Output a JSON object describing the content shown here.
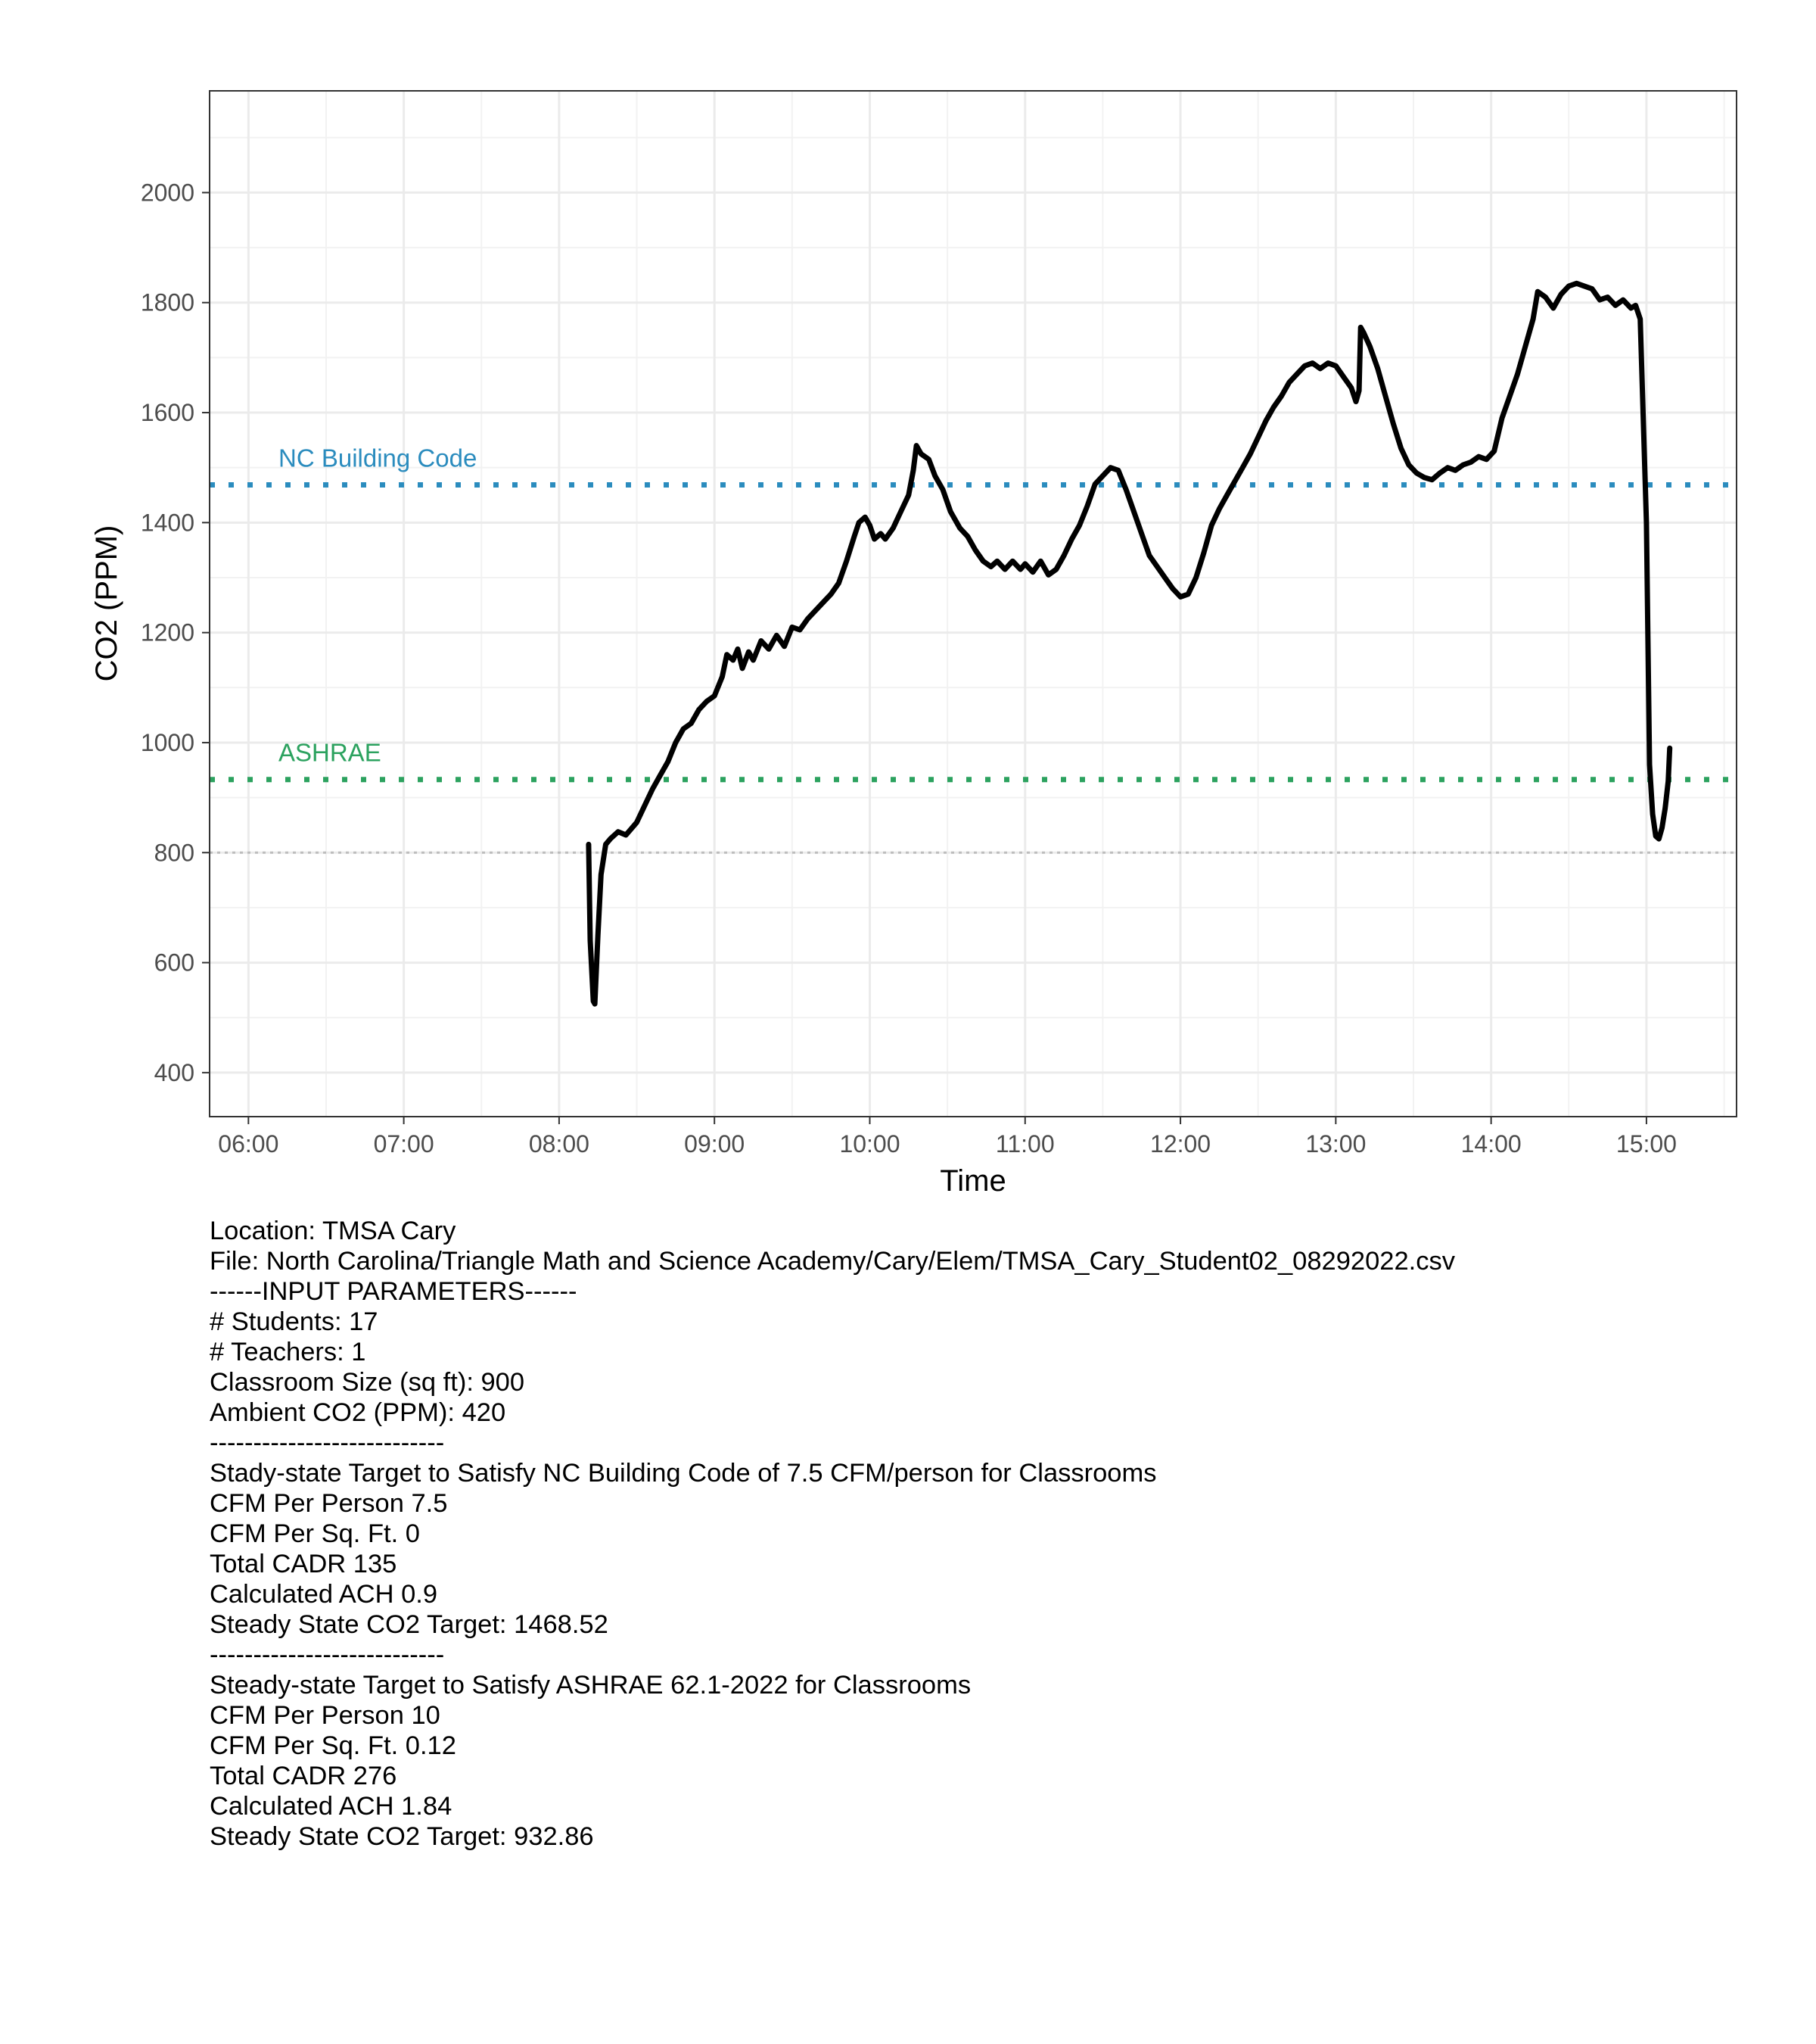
{
  "chart_data": {
    "type": "line",
    "xlabel": "Time",
    "ylabel": "CO2 (PPM)",
    "x_unit": "time of day (hours)",
    "xlim": [
      5.75,
      15.58
    ],
    "ylim": [
      320,
      2185
    ],
    "x_ticks": [
      {
        "value": 6,
        "label": "06:00"
      },
      {
        "value": 7,
        "label": "07:00"
      },
      {
        "value": 8,
        "label": "08:00"
      },
      {
        "value": 9,
        "label": "09:00"
      },
      {
        "value": 10,
        "label": "10:00"
      },
      {
        "value": 11,
        "label": "11:00"
      },
      {
        "value": 12,
        "label": "12:00"
      },
      {
        "value": 13,
        "label": "13:00"
      },
      {
        "value": 14,
        "label": "14:00"
      },
      {
        "value": 15,
        "label": "15:00"
      }
    ],
    "y_ticks": [
      400,
      600,
      800,
      1000,
      1200,
      1400,
      1600,
      1800,
      2000
    ],
    "grid": true,
    "reference_lines": [
      {
        "label": "NC Building Code",
        "value": 1468.52,
        "color": "#2b8cbe"
      },
      {
        "label": "ASHRAE",
        "value": 932.86,
        "color": "#2ca25f"
      },
      {
        "label": "",
        "value": 800,
        "color": "#bdbdbd"
      }
    ],
    "series": [
      {
        "color": "#000000",
        "points": [
          [
            8.19,
            815
          ],
          [
            8.2,
            640
          ],
          [
            8.22,
            530
          ],
          [
            8.23,
            525
          ],
          [
            8.25,
            650
          ],
          [
            8.27,
            760
          ],
          [
            8.3,
            815
          ],
          [
            8.33,
            825
          ],
          [
            8.38,
            838
          ],
          [
            8.43,
            832
          ],
          [
            8.5,
            855
          ],
          [
            8.55,
            885
          ],
          [
            8.6,
            915
          ],
          [
            8.65,
            940
          ],
          [
            8.7,
            965
          ],
          [
            8.75,
            1000
          ],
          [
            8.8,
            1025
          ],
          [
            8.85,
            1035
          ],
          [
            8.9,
            1060
          ],
          [
            8.95,
            1075
          ],
          [
            9.0,
            1085
          ],
          [
            9.05,
            1120
          ],
          [
            9.08,
            1160
          ],
          [
            9.12,
            1150
          ],
          [
            9.15,
            1170
          ],
          [
            9.18,
            1135
          ],
          [
            9.22,
            1165
          ],
          [
            9.25,
            1150
          ],
          [
            9.3,
            1185
          ],
          [
            9.35,
            1170
          ],
          [
            9.4,
            1195
          ],
          [
            9.45,
            1175
          ],
          [
            9.5,
            1210
          ],
          [
            9.55,
            1205
          ],
          [
            9.6,
            1225
          ],
          [
            9.65,
            1240
          ],
          [
            9.7,
            1255
          ],
          [
            9.75,
            1270
          ],
          [
            9.8,
            1290
          ],
          [
            9.85,
            1330
          ],
          [
            9.9,
            1375
          ],
          [
            9.93,
            1400
          ],
          [
            9.97,
            1410
          ],
          [
            10.0,
            1395
          ],
          [
            10.03,
            1370
          ],
          [
            10.07,
            1380
          ],
          [
            10.1,
            1370
          ],
          [
            10.15,
            1390
          ],
          [
            10.2,
            1420
          ],
          [
            10.25,
            1450
          ],
          [
            10.28,
            1495
          ],
          [
            10.3,
            1540
          ],
          [
            10.33,
            1525
          ],
          [
            10.38,
            1515
          ],
          [
            10.42,
            1485
          ],
          [
            10.47,
            1460
          ],
          [
            10.52,
            1420
          ],
          [
            10.58,
            1390
          ],
          [
            10.63,
            1375
          ],
          [
            10.68,
            1350
          ],
          [
            10.73,
            1330
          ],
          [
            10.78,
            1320
          ],
          [
            10.82,
            1330
          ],
          [
            10.87,
            1315
          ],
          [
            10.92,
            1330
          ],
          [
            10.97,
            1315
          ],
          [
            11.0,
            1325
          ],
          [
            11.05,
            1310
          ],
          [
            11.1,
            1330
          ],
          [
            11.15,
            1305
          ],
          [
            11.2,
            1315
          ],
          [
            11.25,
            1340
          ],
          [
            11.3,
            1370
          ],
          [
            11.35,
            1395
          ],
          [
            11.4,
            1430
          ],
          [
            11.45,
            1470
          ],
          [
            11.5,
            1485
          ],
          [
            11.55,
            1500
          ],
          [
            11.6,
            1495
          ],
          [
            11.65,
            1460
          ],
          [
            11.7,
            1420
          ],
          [
            11.75,
            1380
          ],
          [
            11.8,
            1340
          ],
          [
            11.85,
            1320
          ],
          [
            11.9,
            1300
          ],
          [
            11.95,
            1280
          ],
          [
            12.0,
            1265
          ],
          [
            12.05,
            1270
          ],
          [
            12.1,
            1300
          ],
          [
            12.15,
            1345
          ],
          [
            12.2,
            1395
          ],
          [
            12.25,
            1425
          ],
          [
            12.3,
            1450
          ],
          [
            12.35,
            1475
          ],
          [
            12.4,
            1500
          ],
          [
            12.45,
            1525
          ],
          [
            12.5,
            1555
          ],
          [
            12.55,
            1585
          ],
          [
            12.6,
            1610
          ],
          [
            12.65,
            1630
          ],
          [
            12.7,
            1655
          ],
          [
            12.75,
            1670
          ],
          [
            12.8,
            1685
          ],
          [
            12.85,
            1690
          ],
          [
            12.9,
            1680
          ],
          [
            12.95,
            1690
          ],
          [
            13.0,
            1685
          ],
          [
            13.05,
            1665
          ],
          [
            13.1,
            1645
          ],
          [
            13.13,
            1620
          ],
          [
            13.15,
            1640
          ],
          [
            13.16,
            1755
          ],
          [
            13.18,
            1745
          ],
          [
            13.22,
            1720
          ],
          [
            13.27,
            1680
          ],
          [
            13.32,
            1630
          ],
          [
            13.37,
            1580
          ],
          [
            13.42,
            1535
          ],
          [
            13.47,
            1505
          ],
          [
            13.52,
            1490
          ],
          [
            13.57,
            1482
          ],
          [
            13.62,
            1478
          ],
          [
            13.67,
            1490
          ],
          [
            13.72,
            1500
          ],
          [
            13.77,
            1495
          ],
          [
            13.82,
            1505
          ],
          [
            13.87,
            1510
          ],
          [
            13.92,
            1520
          ],
          [
            13.97,
            1515
          ],
          [
            14.02,
            1530
          ],
          [
            14.07,
            1590
          ],
          [
            14.12,
            1630
          ],
          [
            14.17,
            1670
          ],
          [
            14.22,
            1720
          ],
          [
            14.27,
            1770
          ],
          [
            14.3,
            1820
          ],
          [
            14.35,
            1810
          ],
          [
            14.4,
            1790
          ],
          [
            14.45,
            1815
          ],
          [
            14.5,
            1830
          ],
          [
            14.55,
            1835
          ],
          [
            14.6,
            1830
          ],
          [
            14.65,
            1825
          ],
          [
            14.7,
            1805
          ],
          [
            14.75,
            1810
          ],
          [
            14.8,
            1795
          ],
          [
            14.85,
            1805
          ],
          [
            14.9,
            1790
          ],
          [
            14.93,
            1795
          ],
          [
            14.96,
            1770
          ],
          [
            15.0,
            1400
          ],
          [
            15.02,
            960
          ],
          [
            15.04,
            870
          ],
          [
            15.06,
            830
          ],
          [
            15.08,
            825
          ],
          [
            15.1,
            845
          ],
          [
            15.12,
            880
          ],
          [
            15.14,
            930
          ],
          [
            15.15,
            990
          ]
        ]
      }
    ]
  },
  "caption_lines": [
    "Location: TMSA Cary",
    "File: North Carolina/Triangle Math and Science Academy/Cary/Elem/TMSA_Cary_Student02_08292022.csv",
    "------INPUT PARAMETERS------",
    "# Students: 17",
    "# Teachers: 1",
    "Classroom Size (sq ft): 900",
    "Ambient CO2 (PPM): 420",
    "---------------------------",
    "Stady-state Target to Satisfy NC Building Code of 7.5 CFM/person for Classrooms",
    "CFM Per Person 7.5",
    "CFM Per Sq. Ft. 0",
    "Total CADR 135",
    "Calculated ACH 0.9",
    "Steady State CO2 Target: 1468.52",
    "---------------------------",
    "Steady-state Target to Satisfy ASHRAE 62.1-2022 for Classrooms",
    "CFM Per Person 10",
    "CFM Per Sq. Ft. 0.12",
    "Total CADR 276",
    "Calculated ACH 1.84",
    "Steady State CO2 Target: 932.86"
  ]
}
